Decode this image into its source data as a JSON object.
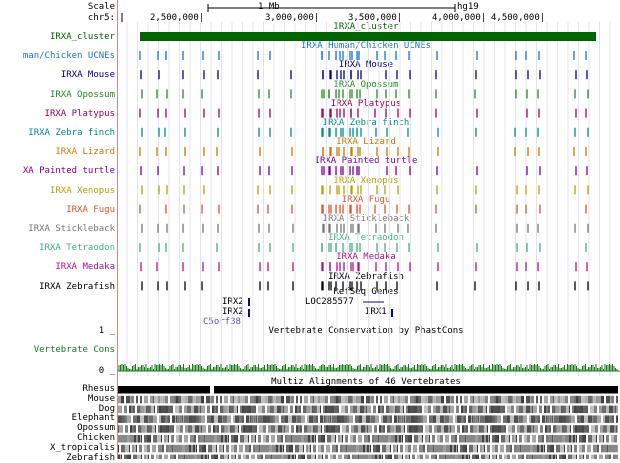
{
  "browser": {
    "scale_label": "Scale",
    "scale_bar_text": "1 Mb",
    "assembly": "hg19",
    "chrom_label": "chr5:",
    "positions": [
      "2,500,000|",
      "3,000,000|",
      "3,500,000|",
      "4,000,000|",
      "4,500,000|"
    ]
  },
  "tracks": [
    {
      "id": "cluster",
      "label": "IRXA_cluster",
      "title": "IRXA_cluster",
      "color": "#006400"
    },
    {
      "id": "ucne",
      "label": "man/Chicken UCNEs",
      "title": "IRXA Human/Chicken UCNEs",
      "color": "#1874cd"
    },
    {
      "id": "mouse",
      "label": "IRXA Mouse",
      "title": "IRXA Mouse",
      "color": "#00008b"
    },
    {
      "id": "opossum",
      "label": "IRXA Opossum",
      "title": "IRXA Opossum",
      "color": "#228b22"
    },
    {
      "id": "platypus",
      "label": "IRXA Platypus",
      "title": "IRXA Platypus",
      "color": "#a0005a"
    },
    {
      "id": "zebrafinch",
      "label": "IRXA Zebra finch",
      "title": "IRXA Zebra finch",
      "color": "#008b8b"
    },
    {
      "id": "lizard",
      "label": "IRXA Lizard",
      "title": "IRXA Lizard",
      "color": "#cc7a00"
    },
    {
      "id": "turtle",
      "label": "XA Painted turtle",
      "title": "IRXA Painted turtle",
      "color": "#7a00a0"
    },
    {
      "id": "xenopus",
      "label": "IRXA Xenopus",
      "title": "IRXA Xenopus",
      "color": "#b8a000"
    },
    {
      "id": "fugu",
      "label": "IRXA Fugu",
      "title": "IRXA Fugu",
      "color": "#e05030"
    },
    {
      "id": "stickleback",
      "label": "IRXA Stickleback",
      "title": "IRXA Stickleback",
      "color": "#777777"
    },
    {
      "id": "tetraodon",
      "label": "IRXA Tetraodon",
      "title": "IRXA Tetraodon",
      "color": "#40b080"
    },
    {
      "id": "medaka",
      "label": "IRXA Medaka",
      "title": "IRXA Medaka",
      "color": "#b0108a"
    },
    {
      "id": "zebrafish",
      "label": "IRXA Zebrafish",
      "title": "IRXA Zebrafish",
      "color": "#000000"
    }
  ],
  "refseq": {
    "title": "RefSeq Genes",
    "genes": [
      "IRX2",
      "LOC285577",
      "IRX2",
      "IRX1",
      "C5orf38"
    ]
  },
  "conservation": {
    "title": "Vertebrate Conservation by PhastCons",
    "label": "Vertebrate Cons",
    "axis_max": "1 _",
    "axis_min": "0 _",
    "color": "#1a7a1a"
  },
  "multiz": {
    "title": "Multiz Alignments of 46 Vertebrates",
    "species": [
      "Rhesus",
      "Mouse",
      "Dog",
      "Elephant",
      "Opossum",
      "Chicken",
      "X_tropicalis",
      "Zebrafish"
    ]
  }
}
